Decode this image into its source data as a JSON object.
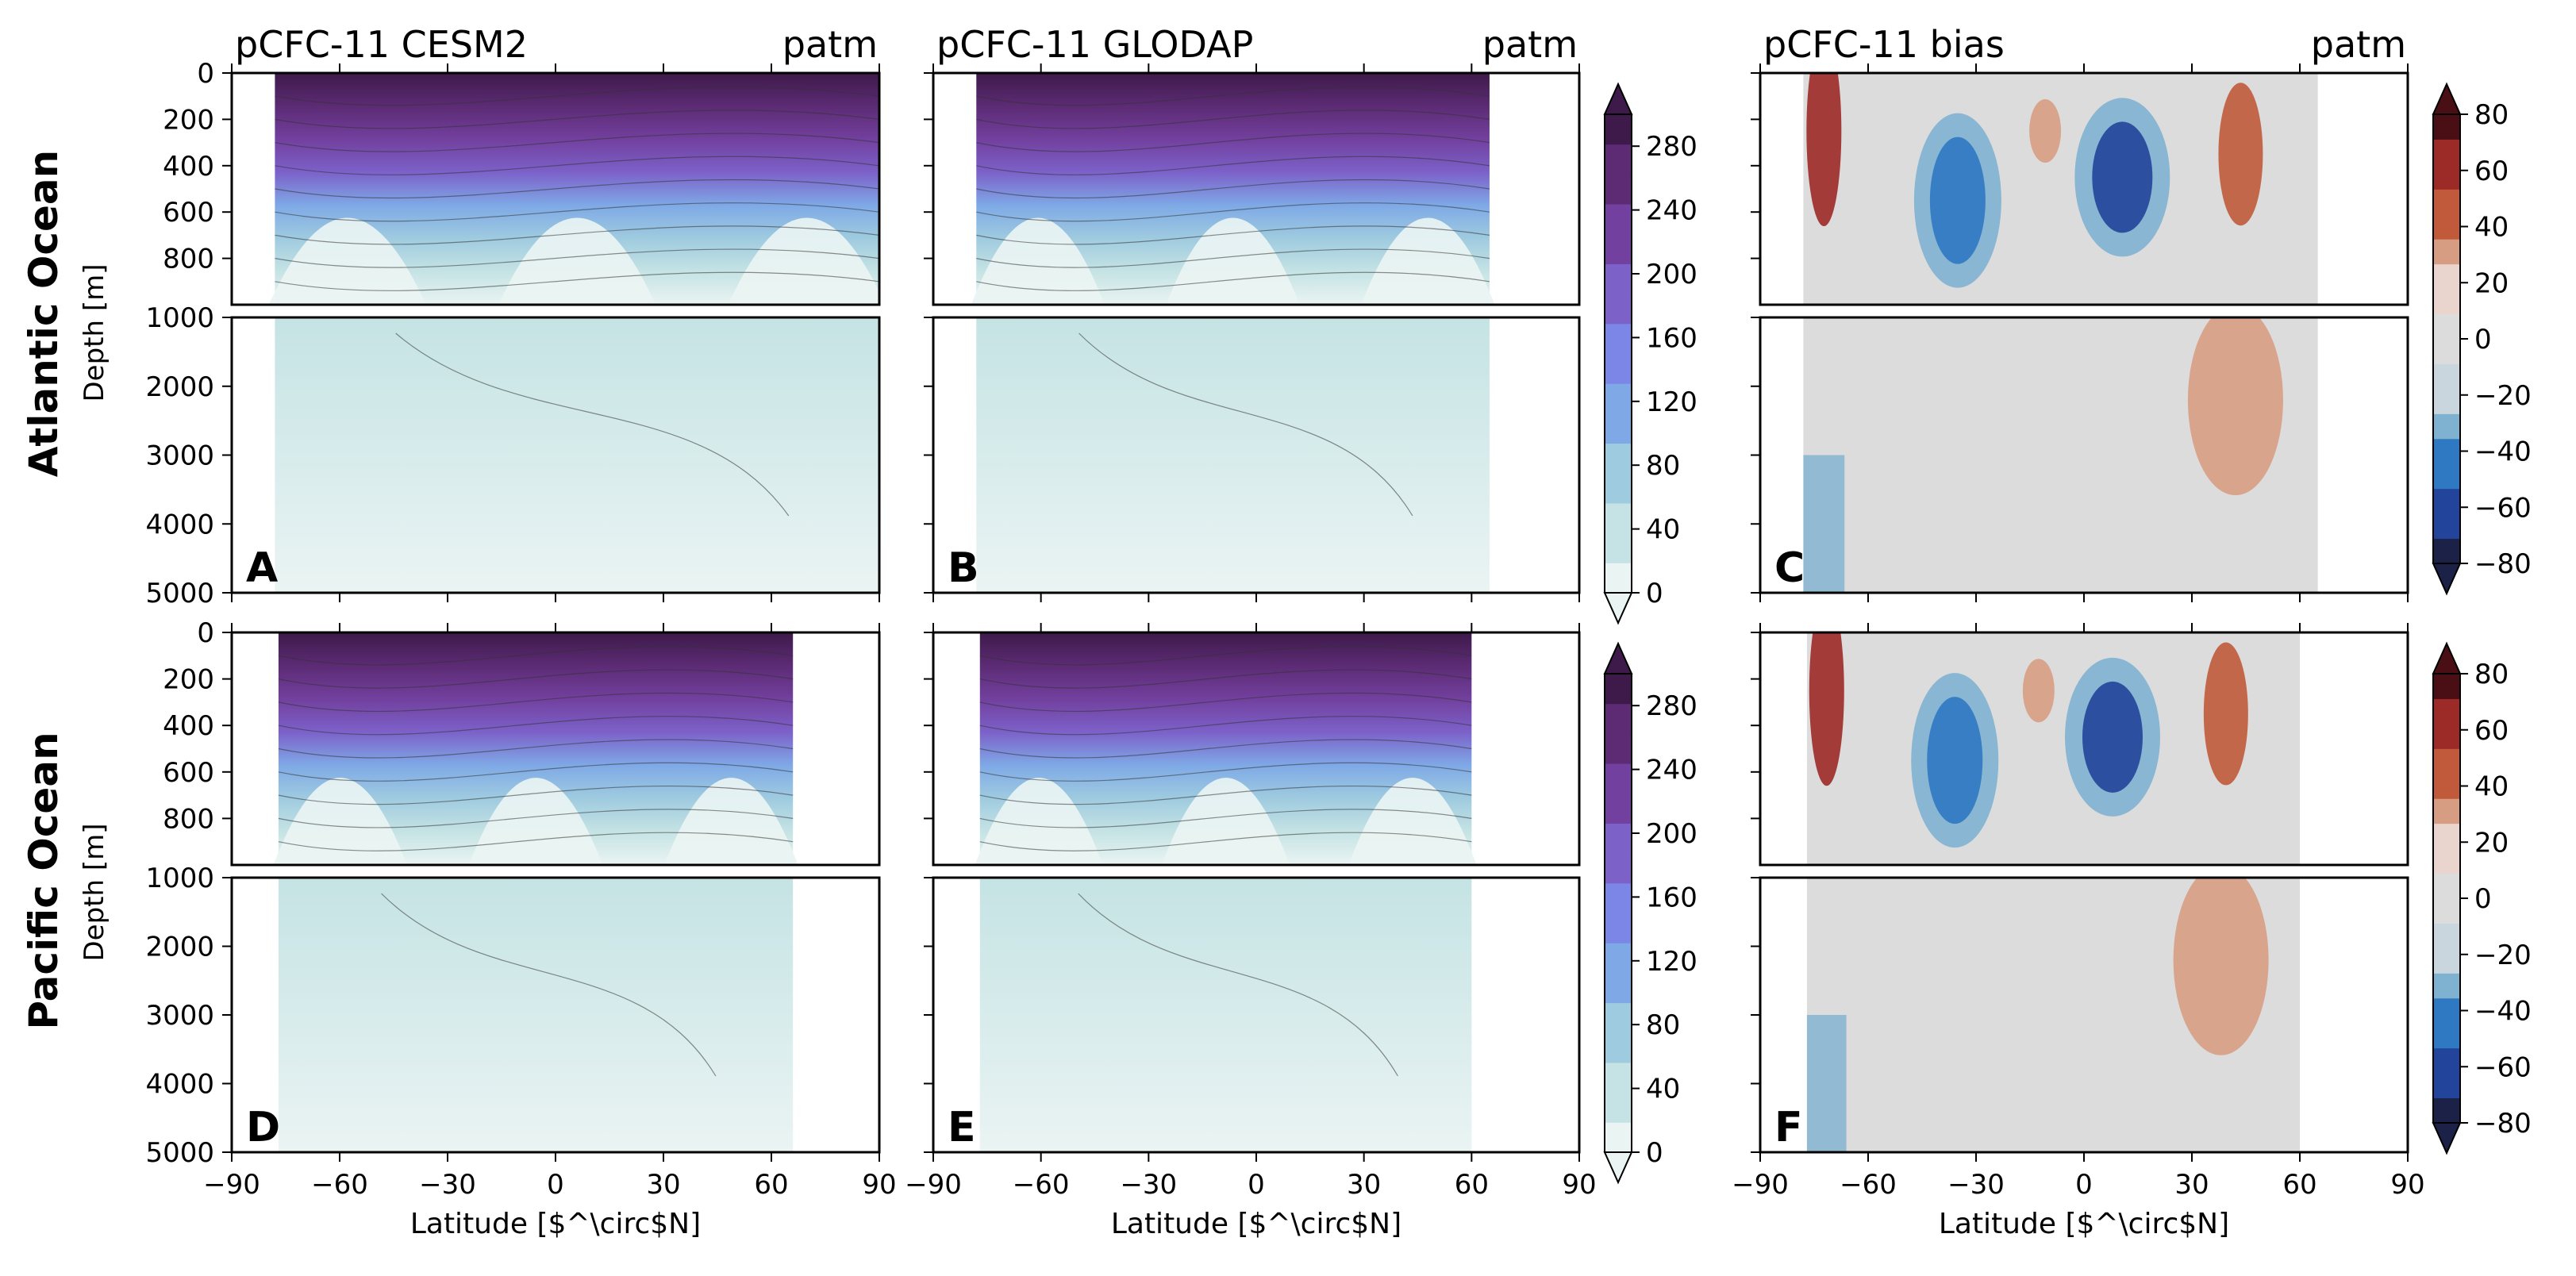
{
  "figure": {
    "row_labels": [
      "Atlantic Ocean",
      "Pacific Ocean"
    ],
    "colorbar_ticks_pcfc": [
      "0",
      "40",
      "80",
      "120",
      "160",
      "200",
      "240",
      "280"
    ],
    "colorbar_ticks_bias": [
      "−80",
      "−60",
      "−40",
      "−20",
      "0",
      "20",
      "40",
      "60",
      "80"
    ],
    "colors": {
      "pcfc_scale": [
        "#eaf4f3",
        "#c5e3e4",
        "#9fcbe0",
        "#7ea9e6",
        "#7b86e6",
        "#7c61c9",
        "#72409e",
        "#5c2b74",
        "#3e1a4a"
      ],
      "bias_scale": [
        "#1b2147",
        "#22449a",
        "#2f78c2",
        "#7fb1d0",
        "#c9d6de",
        "#dcdcdc",
        "#ead4ce",
        "#d79d83",
        "#c05a3b",
        "#9c2a26",
        "#4a0f15"
      ],
      "axes": "#000000",
      "contour_line": "#333333"
    }
  },
  "chart_data": [
    {
      "type": "heatmap",
      "panel": "A",
      "title": "pCFC-11 CESM2",
      "unit_label": "patm",
      "ylabel": "Depth [m]",
      "xlabel": "",
      "xlim": [
        -90,
        90
      ],
      "ylim_upper": [
        0,
        1000
      ],
      "ylim_lower": [
        1000,
        5000
      ],
      "xticks": [
        "−90",
        "−60",
        "−30",
        "0",
        "30",
        "60",
        "90"
      ],
      "yticks_upper": [
        "0",
        "200",
        "400",
        "600",
        "800"
      ],
      "yticks_lower": [
        "1000",
        "2000",
        "3000",
        "4000",
        "5000"
      ],
      "colorbar": "pcfc",
      "clim": [
        0,
        300
      ],
      "data_lat_range": [
        -78,
        90
      ]
    },
    {
      "type": "heatmap",
      "panel": "B",
      "title": "pCFC-11 GLODAP",
      "unit_label": "patm",
      "ylabel": "",
      "xlabel": "",
      "xlim": [
        -90,
        90
      ],
      "ylim_upper": [
        0,
        1000
      ],
      "ylim_lower": [
        1000,
        5000
      ],
      "xticks": [
        "−90",
        "−60",
        "−30",
        "0",
        "30",
        "60",
        "90"
      ],
      "colorbar": "pcfc",
      "clim": [
        0,
        300
      ],
      "data_lat_range": [
        -78,
        65
      ]
    },
    {
      "type": "heatmap",
      "panel": "C",
      "title": "pCFC-11 bias",
      "unit_label": "patm",
      "ylabel": "",
      "xlabel": "",
      "xlim": [
        -90,
        90
      ],
      "ylim_upper": [
        0,
        1000
      ],
      "ylim_lower": [
        1000,
        5000
      ],
      "xticks": [
        "−90",
        "−60",
        "−30",
        "0",
        "30",
        "60",
        "90"
      ],
      "colorbar": "bias",
      "clim": [
        -80,
        80
      ],
      "data_lat_range": [
        -78,
        65
      ]
    },
    {
      "type": "heatmap",
      "panel": "D",
      "title": "",
      "unit_label": "",
      "ylabel": "Depth [m]",
      "xlabel": "Latitude [$^\\circ$N]",
      "xlim": [
        -90,
        90
      ],
      "ylim_upper": [
        0,
        1000
      ],
      "ylim_lower": [
        1000,
        5000
      ],
      "xticks": [
        "−90",
        "−60",
        "−30",
        "0",
        "30",
        "60",
        "90"
      ],
      "yticks_upper": [
        "0",
        "200",
        "400",
        "600",
        "800"
      ],
      "yticks_lower": [
        "1000",
        "2000",
        "3000",
        "4000",
        "5000"
      ],
      "colorbar": "pcfc",
      "clim": [
        0,
        300
      ],
      "data_lat_range": [
        -77,
        66
      ]
    },
    {
      "type": "heatmap",
      "panel": "E",
      "title": "",
      "unit_label": "",
      "ylabel": "",
      "xlabel": "Latitude [$^\\circ$N]",
      "xlim": [
        -90,
        90
      ],
      "ylim_upper": [
        0,
        1000
      ],
      "ylim_lower": [
        1000,
        5000
      ],
      "xticks": [
        "−90",
        "−60",
        "−30",
        "0",
        "30",
        "60",
        "90"
      ],
      "colorbar": "pcfc",
      "clim": [
        0,
        300
      ],
      "data_lat_range": [
        -77,
        60
      ]
    },
    {
      "type": "heatmap",
      "panel": "F",
      "title": "",
      "unit_label": "",
      "ylabel": "",
      "xlabel": "Latitude [$^\\circ$N]",
      "xlim": [
        -90,
        90
      ],
      "ylim_upper": [
        0,
        1000
      ],
      "ylim_lower": [
        1000,
        5000
      ],
      "xticks": [
        "−90",
        "−60",
        "−30",
        "0",
        "30",
        "60",
        "90"
      ],
      "colorbar": "bias",
      "clim": [
        -80,
        80
      ],
      "data_lat_range": [
        -77,
        60
      ]
    }
  ]
}
